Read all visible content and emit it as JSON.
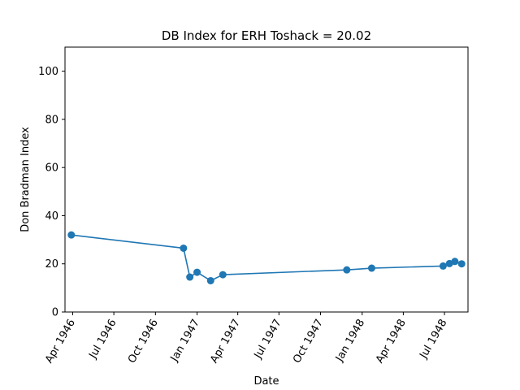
{
  "chart_data": {
    "type": "line",
    "title": "DB Index for ERH Toshack = 20.02",
    "xlabel": "Date",
    "ylabel": "Don Bradman Index",
    "xlim": [
      "1946-03-15",
      "1948-08-22"
    ],
    "ylim": [
      0,
      110
    ],
    "x_ticks": [
      {
        "date": "1946-04-01",
        "label": "Apr 1946"
      },
      {
        "date": "1946-07-01",
        "label": "Jul 1946"
      },
      {
        "date": "1946-10-01",
        "label": "Oct 1946"
      },
      {
        "date": "1947-01-01",
        "label": "Jan 1947"
      },
      {
        "date": "1947-04-01",
        "label": "Apr 1947"
      },
      {
        "date": "1947-07-01",
        "label": "Jul 1947"
      },
      {
        "date": "1947-10-01",
        "label": "Oct 1947"
      },
      {
        "date": "1948-01-01",
        "label": "Jan 1948"
      },
      {
        "date": "1948-04-01",
        "label": "Apr 1948"
      },
      {
        "date": "1948-07-01",
        "label": "Jul 1948"
      }
    ],
    "y_ticks": [
      0,
      20,
      40,
      60,
      80,
      100
    ],
    "grid": false,
    "color": "#1f77b4",
    "series": [
      {
        "points": [
          {
            "x": "1946-03-29",
            "y": 32.0
          },
          {
            "x": "1946-12-02",
            "y": 26.5
          },
          {
            "x": "1946-12-16",
            "y": 14.5
          },
          {
            "x": "1947-01-01",
            "y": 16.5
          },
          {
            "x": "1947-01-31",
            "y": 13.0
          },
          {
            "x": "1947-02-27",
            "y": 15.5
          },
          {
            "x": "1947-11-28",
            "y": 17.5
          },
          {
            "x": "1948-01-22",
            "y": 18.2
          },
          {
            "x": "1948-06-28",
            "y": 19.1
          },
          {
            "x": "1948-07-12",
            "y": 20.1
          },
          {
            "x": "1948-07-24",
            "y": 21.0
          },
          {
            "x": "1948-08-08",
            "y": 20.0
          }
        ]
      }
    ]
  }
}
